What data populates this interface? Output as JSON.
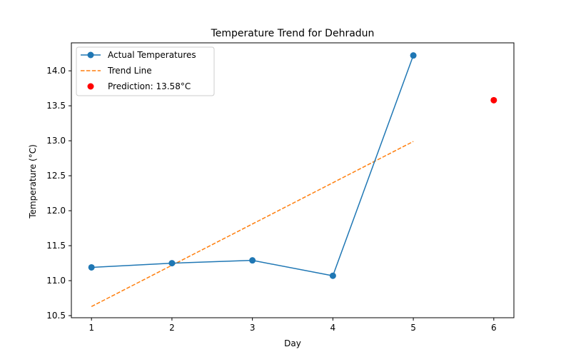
{
  "chart_data": {
    "type": "line",
    "title": "Temperature Trend for Dehradun",
    "xlabel": "Day",
    "ylabel": "Temperature (°C)",
    "xlim": [
      0.75,
      6.25
    ],
    "ylim": [
      10.47,
      14.4
    ],
    "xticks": [
      1,
      2,
      3,
      4,
      5,
      6
    ],
    "xtick_labels": [
      "1",
      "2",
      "3",
      "4",
      "5",
      "6"
    ],
    "yticks": [
      10.5,
      11.0,
      11.5,
      12.0,
      12.5,
      13.0,
      13.5,
      14.0
    ],
    "ytick_labels": [
      "10.5",
      "11.0",
      "11.5",
      "12.0",
      "12.5",
      "13.0",
      "13.5",
      "14.0"
    ],
    "grid": false,
    "legend_position": "top-left",
    "series": [
      {
        "name": "Actual Temperatures",
        "kind": "line-marker",
        "color": "#1f77b4",
        "x": [
          1,
          2,
          3,
          4,
          5
        ],
        "y": [
          11.19,
          11.25,
          11.29,
          11.07,
          14.22
        ]
      },
      {
        "name": "Trend Line",
        "kind": "dashed-line",
        "color": "#ff7f0e",
        "x": [
          1,
          2,
          3,
          4,
          5
        ],
        "y": [
          10.63,
          11.22,
          11.81,
          12.4,
          12.99
        ]
      },
      {
        "name": "Prediction: 13.58°C",
        "kind": "scatter",
        "color": "#ff0000",
        "x": [
          6
        ],
        "y": [
          13.58
        ]
      }
    ]
  }
}
